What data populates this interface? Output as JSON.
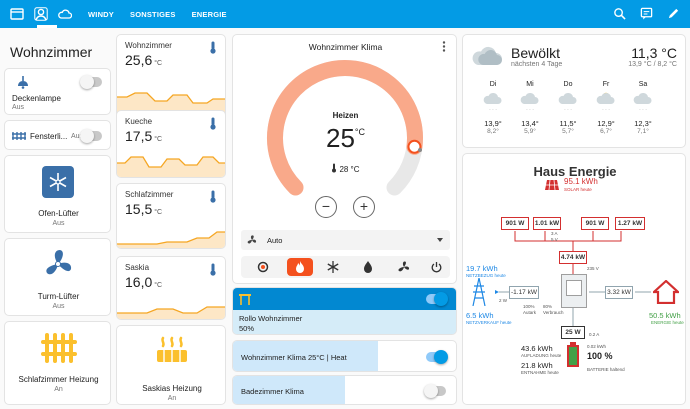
{
  "topbar": {
    "tabs": [
      "WINDY",
      "SONSTIGES",
      "ENERGIE"
    ]
  },
  "room": {
    "title": "Wohnzimmer",
    "deckenlampe": {
      "name": "Deckenlampe",
      "state": "Aus"
    },
    "fenster": {
      "name": "Fensterli...",
      "state": "Aus"
    }
  },
  "fans": [
    {
      "name": "Ofen-Lüfter",
      "state": "Aus"
    },
    {
      "name": "Turm-Lüfter",
      "state": "Aus"
    },
    {
      "name": "Schlafzimmer Heizung",
      "state": "An"
    }
  ],
  "temps": [
    {
      "name": "Wohnzimmer",
      "value": "25,6",
      "unit": "°C"
    },
    {
      "name": "Kueche",
      "value": "17,5",
      "unit": "°C"
    },
    {
      "name": "Schlafzimmer",
      "value": "15,5",
      "unit": "°C"
    },
    {
      "name": "Saskia",
      "value": "16,0",
      "unit": "°C"
    }
  ],
  "saskia_heater": {
    "name": "Saskias Heizung",
    "state": "An"
  },
  "climate": {
    "title": "Wohnzimmer Klima",
    "mode": "Heizen",
    "target": "25",
    "unit": "°C",
    "current": "28 °C",
    "fan_mode": "Auto",
    "target_fraction": 0.86
  },
  "rollo": {
    "name": "Rollo Wohnzimmer",
    "value": "50%",
    "fraction": 0.5
  },
  "sliders": [
    {
      "name": "Wohnzimmer Klima 25°C | Heat",
      "fraction": 0.65
    },
    {
      "name": "Badezimmer Klima",
      "fraction": 0.5
    }
  ],
  "weather": {
    "condition": "Bewölkt",
    "subtitle": "nächsten 4 Tage",
    "temp": "11,3 °C",
    "range": "13,9 °C / 8,2 °C",
    "days": [
      {
        "day": "Di",
        "high": "13,9°",
        "low": "8,2°"
      },
      {
        "day": "Mi",
        "high": "13,4°",
        "low": "5,9°"
      },
      {
        "day": "Do",
        "high": "11,5°",
        "low": "5,7°"
      },
      {
        "day": "Fr",
        "high": "12,9°",
        "low": "6,7°"
      },
      {
        "day": "Sa",
        "high": "12,3°",
        "low": "7,1°"
      }
    ]
  },
  "energy": {
    "title": "Haus Energie",
    "solar": "95.1 kWh",
    "solar_label": "SOLAR heute",
    "panels": [
      "901 W",
      "1.01 kW",
      "901 W",
      "1.27 kW"
    ],
    "panel_small": "3 A",
    "panel_volt": "5 V",
    "total_solar": "4.74 kW",
    "total_volt": "235 V",
    "grid_in": "19.7 kWh",
    "grid_in_label": "NETZBEZUG heute",
    "grid_out": "6.5 kWh",
    "grid_out_label": "NETZVERKAUF heute",
    "grid_power": "-1.17 kW",
    "grid_small": "2 W",
    "autarky": "100%",
    "autarky_label": "Autark",
    "self_use": "80%",
    "self_use_label": "Verbrauch",
    "house_power": "3.32 kW",
    "house_total": "50.5 kWh",
    "house_label": "ENERGIE heute",
    "battery_power": "25 W",
    "battery_amp": "0.2 A",
    "battery_in": "43.6 kWh",
    "battery_in_label": "AUFLADUNG heute",
    "battery_out": "21.8 kWh",
    "battery_out_label": "ENTNAHME heute",
    "battery_small": "0.02 kWh",
    "battery_level": "100 %",
    "battery_state": "BATTERIE haltend",
    "colors": {
      "solar": "#d32f2f",
      "grid": "#1e88e5",
      "house": "#d32f2f",
      "battery": "#43a047"
    }
  }
}
